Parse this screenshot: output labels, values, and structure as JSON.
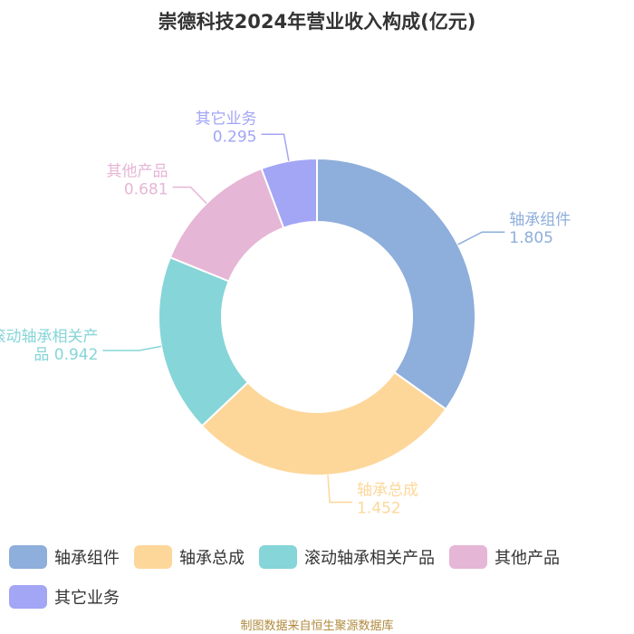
{
  "title": "崇德科技2024年营业收入构成(亿元)",
  "source": "制图数据来自恒生聚源数据库",
  "chart_data": {
    "type": "pie",
    "variant": "donut",
    "title": "崇德科技2024年营业收入构成(亿元)",
    "unit": "亿元",
    "legend_position": "bottom",
    "slices": [
      {
        "name": "轴承组件",
        "value": 1.805,
        "color": "#8eaedb",
        "label_lines": [
          "轴承组件",
          "1.805"
        ]
      },
      {
        "name": "轴承总成",
        "value": 1.452,
        "color": "#fdd79a",
        "label_lines": [
          "轴承总成",
          "1.452"
        ]
      },
      {
        "name": "滚动轴承相关产品",
        "value": 0.942,
        "color": "#86d5d8",
        "label_lines": [
          "滚动轴承相关产",
          "品 0.942"
        ]
      },
      {
        "name": "其他产品",
        "value": 0.681,
        "color": "#e6b6d6",
        "label_lines": [
          "其他产品",
          "0.681"
        ]
      },
      {
        "name": "其它业务",
        "value": 0.295,
        "color": "#a3a5f5",
        "label_lines": [
          "其它业务",
          "0.295"
        ]
      }
    ]
  }
}
